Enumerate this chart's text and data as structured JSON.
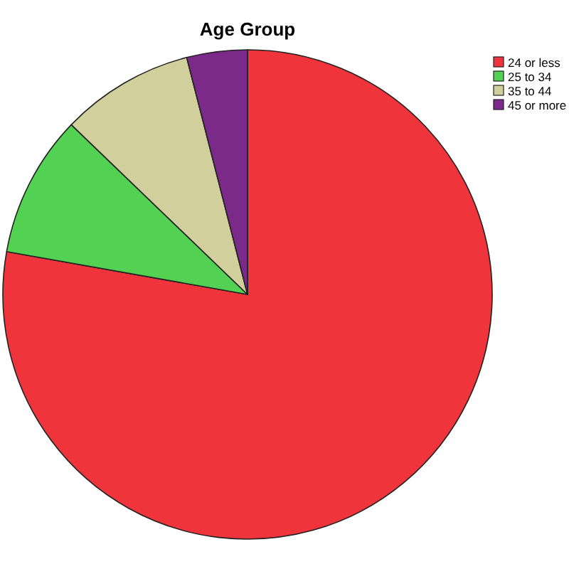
{
  "chart_data": {
    "type": "pie",
    "title": "Age Group",
    "categories": [
      "24 or less",
      "25 to 34",
      "35 to 44",
      "45 or more"
    ],
    "values": [
      77.8,
      9.4,
      8.8,
      4.0
    ],
    "colors": [
      "#ef343b",
      "#52d152",
      "#d1d09c",
      "#7b2a8a"
    ],
    "legend": "top right"
  }
}
